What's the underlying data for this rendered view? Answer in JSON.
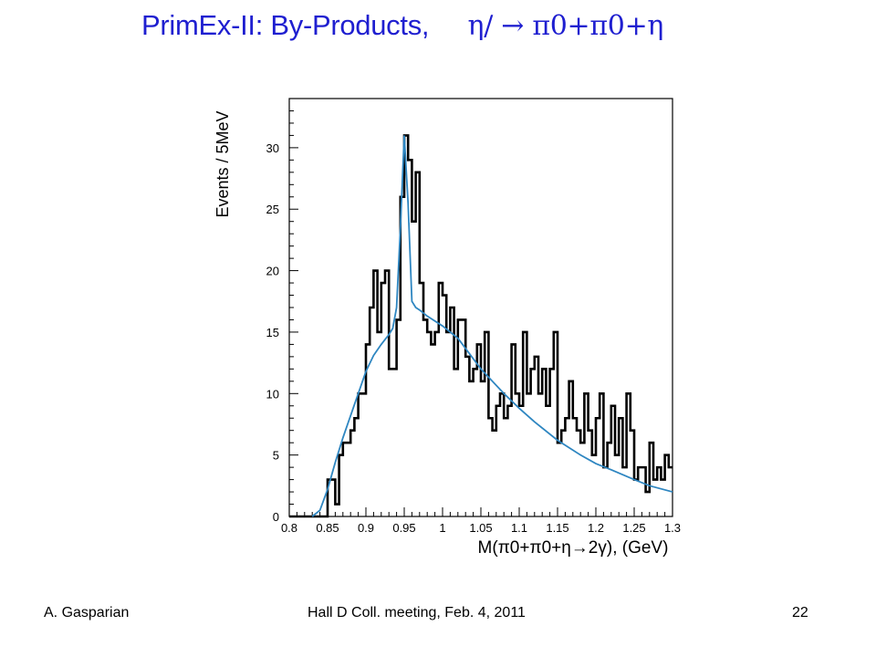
{
  "slide": {
    "title": "PrimEx-II: By-Products,",
    "title_formula": "η/ → π0+π0+η",
    "footer_left": "A. Gasparian",
    "footer_center": "Hall D Coll. meeting, Feb. 4, 2011",
    "page_number": "22"
  },
  "chart_data": {
    "type": "line",
    "ylabel": "Events / 5MeV",
    "xlabel": "M(π0+π0+η→2γ), (GeV)",
    "xlim": [
      0.8,
      1.3
    ],
    "ylim": [
      0,
      34
    ],
    "x_ticks": [
      "0.8",
      "0.85",
      "0.9",
      "0.95",
      "1",
      "1.05",
      "1.1",
      "1.15",
      "1.2",
      "1.25",
      "1.3"
    ],
    "y_ticks": [
      "0",
      "5",
      "10",
      "15",
      "20",
      "25",
      "30"
    ],
    "grid": false,
    "legend": "none",
    "line_color": "#2e86c1",
    "histogram_color": "#000000",
    "series": [
      {
        "kind": "histogram",
        "bin_width": 0.005,
        "x_start": 0.8,
        "values": [
          0,
          0,
          0,
          0,
          0,
          0,
          0,
          0,
          0,
          0,
          3,
          3,
          1,
          5,
          6,
          6,
          7,
          8,
          10,
          10,
          14,
          17,
          20,
          15,
          19,
          20,
          12,
          12,
          16,
          26,
          31,
          29,
          24,
          28,
          19,
          16,
          15,
          14,
          15,
          19,
          18,
          15,
          17,
          12,
          16,
          16,
          13,
          11,
          12,
          14,
          11,
          15,
          8,
          7,
          9,
          10,
          8,
          9,
          14,
          10,
          9,
          15,
          10,
          12,
          13,
          10,
          12,
          9,
          12,
          15,
          6,
          7,
          8,
          11,
          8,
          7,
          6,
          10,
          7,
          5,
          8,
          10,
          4,
          6,
          9,
          5,
          8,
          4,
          10,
          7,
          3,
          4,
          4,
          2,
          6,
          3,
          4,
          3,
          5,
          4
        ]
      },
      {
        "kind": "fit_curve",
        "x": [
          0.83,
          0.84,
          0.85,
          0.86,
          0.87,
          0.88,
          0.89,
          0.9,
          0.91,
          0.92,
          0.93,
          0.935,
          0.94,
          0.945,
          0.95,
          0.955,
          0.96,
          0.965,
          0.97,
          0.98,
          1.0,
          1.02,
          1.05,
          1.08,
          1.1,
          1.12,
          1.15,
          1.18,
          1.2,
          1.22,
          1.25,
          1.27,
          1.3
        ],
        "y": [
          0.0,
          0.5,
          2.2,
          4.4,
          6.4,
          8.2,
          10.0,
          11.8,
          13.1,
          14.0,
          14.8,
          15.3,
          17.0,
          23.5,
          31.0,
          25.5,
          17.5,
          17.0,
          16.8,
          16.3,
          15.5,
          14.5,
          12.0,
          10.0,
          8.8,
          7.7,
          6.2,
          5.0,
          4.3,
          3.8,
          3.0,
          2.5,
          2.0
        ]
      }
    ]
  }
}
